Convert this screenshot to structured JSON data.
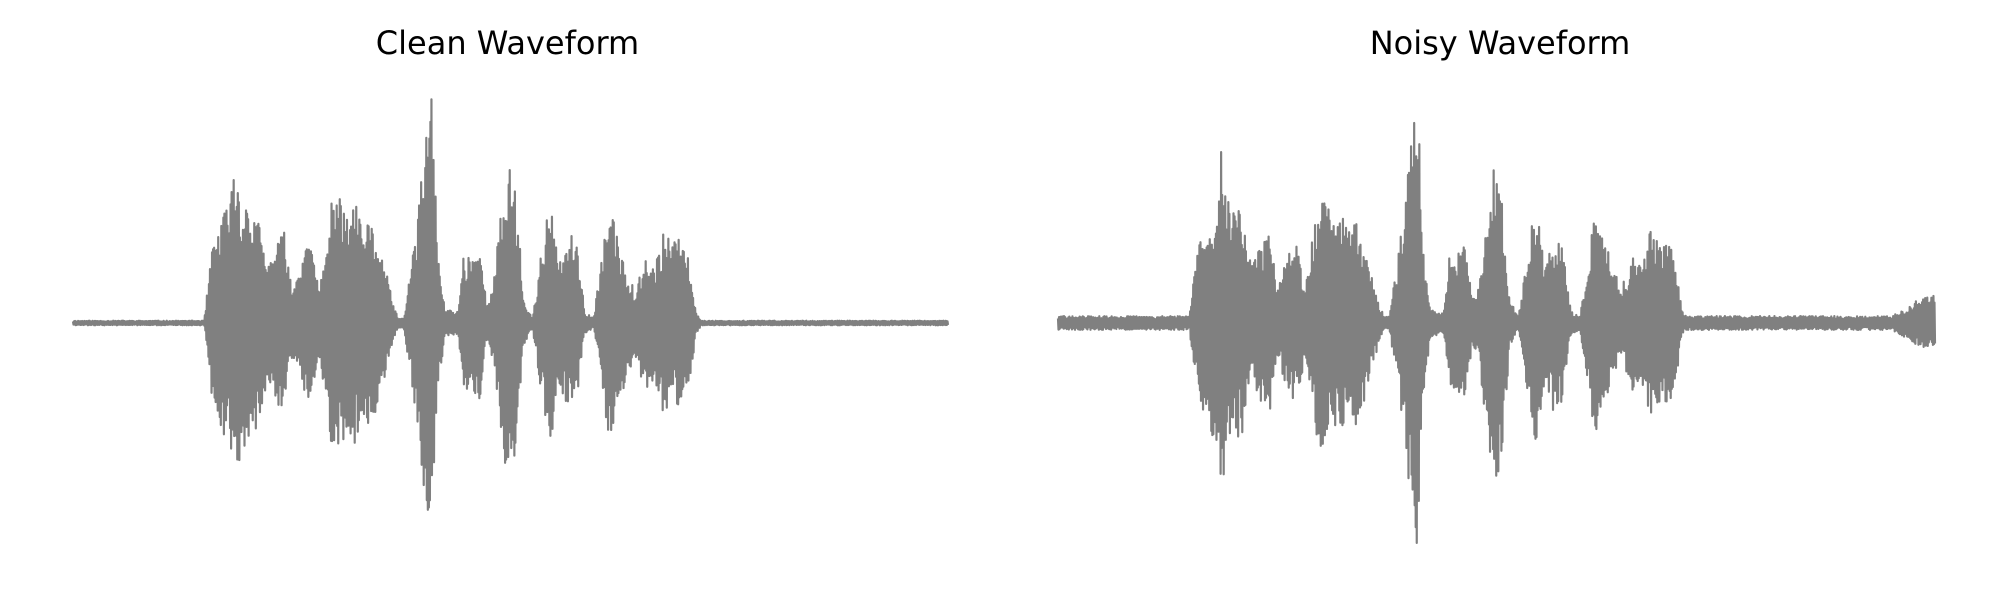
{
  "chart_data": [
    {
      "type": "line",
      "title": "Clean Waveform",
      "xlabel": "",
      "ylabel": "",
      "axes_visible": false,
      "grid": false,
      "color": "#808080",
      "series": [
        {
          "envelope": [
            [
              0.0,
              0.01
            ],
            [
              0.15,
              0.01
            ],
            [
              0.158,
              0.3
            ],
            [
              0.168,
              0.45
            ],
            [
              0.18,
              0.55
            ],
            [
              0.185,
              0.75
            ],
            [
              0.192,
              0.55
            ],
            [
              0.2,
              0.52
            ],
            [
              0.21,
              0.48
            ],
            [
              0.222,
              0.25
            ],
            [
              0.232,
              0.35
            ],
            [
              0.242,
              0.4
            ],
            [
              0.25,
              0.15
            ],
            [
              0.262,
              0.3
            ],
            [
              0.272,
              0.35
            ],
            [
              0.282,
              0.15
            ],
            [
              0.295,
              0.52
            ],
            [
              0.305,
              0.55
            ],
            [
              0.315,
              0.45
            ],
            [
              0.322,
              0.55
            ],
            [
              0.33,
              0.4
            ],
            [
              0.34,
              0.45
            ],
            [
              0.35,
              0.35
            ],
            [
              0.358,
              0.22
            ],
            [
              0.366,
              0.08
            ],
            [
              0.372,
              0.02
            ],
            [
              0.378,
              0.02
            ],
            [
              0.388,
              0.3
            ],
            [
              0.396,
              0.55
            ],
            [
              0.404,
              0.85
            ],
            [
              0.41,
              0.98
            ],
            [
              0.417,
              0.3
            ],
            [
              0.425,
              0.06
            ],
            [
              0.44,
              0.05
            ],
            [
              0.446,
              0.3
            ],
            [
              0.456,
              0.3
            ],
            [
              0.465,
              0.35
            ],
            [
              0.472,
              0.1
            ],
            [
              0.48,
              0.15
            ],
            [
              0.488,
              0.45
            ],
            [
              0.497,
              0.7
            ],
            [
              0.506,
              0.6
            ],
            [
              0.515,
              0.1
            ],
            [
              0.525,
              0.02
            ],
            [
              0.535,
              0.3
            ],
            [
              0.545,
              0.55
            ],
            [
              0.555,
              0.25
            ],
            [
              0.566,
              0.4
            ],
            [
              0.575,
              0.35
            ],
            [
              0.585,
              0.05
            ],
            [
              0.595,
              0.02
            ],
            [
              0.603,
              0.25
            ],
            [
              0.612,
              0.5
            ],
            [
              0.622,
              0.4
            ],
            [
              0.632,
              0.25
            ],
            [
              0.642,
              0.15
            ],
            [
              0.655,
              0.3
            ],
            [
              0.665,
              0.25
            ],
            [
              0.675,
              0.4
            ],
            [
              0.686,
              0.35
            ],
            [
              0.696,
              0.38
            ],
            [
              0.705,
              0.25
            ],
            [
              0.712,
              0.05
            ],
            [
              0.718,
              0.01
            ],
            [
              1.0,
              0.01
            ]
          ],
          "count": 1700
        }
      ]
    },
    {
      "type": "line",
      "title": "Noisy Waveform",
      "xlabel": "",
      "ylabel": "",
      "axes_visible": false,
      "grid": false,
      "color": "#808080",
      "series": [
        {
          "envelope": [
            [
              0.0,
              0.03
            ],
            [
              0.15,
              0.03
            ],
            [
              0.158,
              0.3
            ],
            [
              0.168,
              0.45
            ],
            [
              0.18,
              0.55
            ],
            [
              0.185,
              0.82
            ],
            [
              0.192,
              0.55
            ],
            [
              0.2,
              0.52
            ],
            [
              0.21,
              0.48
            ],
            [
              0.222,
              0.25
            ],
            [
              0.232,
              0.35
            ],
            [
              0.242,
              0.4
            ],
            [
              0.25,
              0.15
            ],
            [
              0.262,
              0.3
            ],
            [
              0.272,
              0.35
            ],
            [
              0.282,
              0.15
            ],
            [
              0.295,
              0.52
            ],
            [
              0.305,
              0.55
            ],
            [
              0.315,
              0.45
            ],
            [
              0.322,
              0.55
            ],
            [
              0.33,
              0.4
            ],
            [
              0.34,
              0.45
            ],
            [
              0.35,
              0.35
            ],
            [
              0.358,
              0.22
            ],
            [
              0.366,
              0.08
            ],
            [
              0.372,
              0.03
            ],
            [
              0.378,
              0.03
            ],
            [
              0.388,
              0.3
            ],
            [
              0.396,
              0.55
            ],
            [
              0.404,
              0.85
            ],
            [
              0.41,
              0.98
            ],
            [
              0.417,
              0.3
            ],
            [
              0.425,
              0.06
            ],
            [
              0.44,
              0.05
            ],
            [
              0.446,
              0.3
            ],
            [
              0.456,
              0.3
            ],
            [
              0.465,
              0.35
            ],
            [
              0.472,
              0.1
            ],
            [
              0.48,
              0.15
            ],
            [
              0.488,
              0.45
            ],
            [
              0.497,
              0.72
            ],
            [
              0.506,
              0.6
            ],
            [
              0.515,
              0.1
            ],
            [
              0.525,
              0.03
            ],
            [
              0.535,
              0.3
            ],
            [
              0.545,
              0.55
            ],
            [
              0.555,
              0.25
            ],
            [
              0.566,
              0.4
            ],
            [
              0.575,
              0.35
            ],
            [
              0.585,
              0.05
            ],
            [
              0.595,
              0.03
            ],
            [
              0.603,
              0.25
            ],
            [
              0.612,
              0.5
            ],
            [
              0.622,
              0.4
            ],
            [
              0.632,
              0.25
            ],
            [
              0.642,
              0.15
            ],
            [
              0.655,
              0.3
            ],
            [
              0.665,
              0.25
            ],
            [
              0.675,
              0.4
            ],
            [
              0.686,
              0.35
            ],
            [
              0.696,
              0.38
            ],
            [
              0.705,
              0.25
            ],
            [
              0.712,
              0.05
            ],
            [
              0.718,
              0.03
            ],
            [
              0.95,
              0.03
            ],
            [
              0.965,
              0.06
            ],
            [
              0.98,
              0.1
            ],
            [
              1.0,
              0.12
            ]
          ],
          "count": 1700
        }
      ]
    }
  ]
}
